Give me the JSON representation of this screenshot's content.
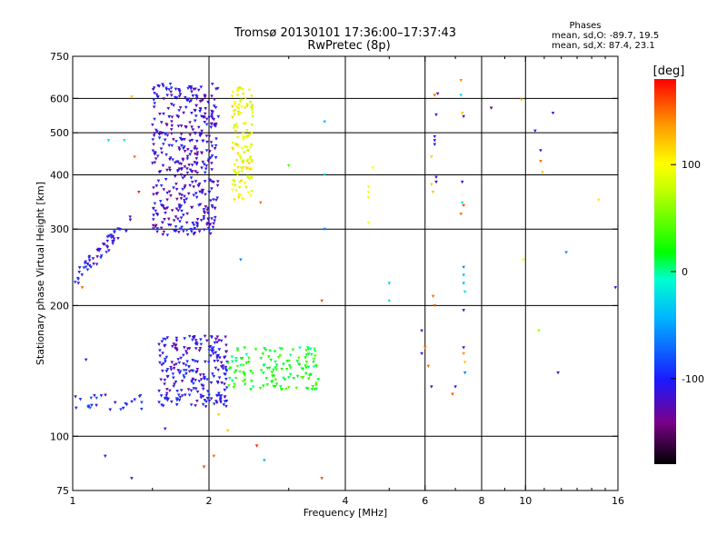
{
  "chart_data": {
    "type": "scatter",
    "title": "Tromsø 20130101 17:36:00–17:37:43",
    "subtitle": "RwPretec (8p)",
    "phases_heading": "Phases",
    "phases_line1": "mean, sd,O: -89.7, 19.5",
    "phases_line2": "mean, sd,X:  87.4, 23.1",
    "xlabel": "Frequency [MHz]",
    "ylabel": "Stationary phase Virtual Height [km]",
    "xscale": "log",
    "yscale": "log",
    "xlim": [
      1,
      16
    ],
    "ylim": [
      75,
      750
    ],
    "xticks": [
      {
        "v": 1,
        "label": "1"
      },
      {
        "v": 2,
        "label": "2"
      },
      {
        "v": 4,
        "label": "4"
      },
      {
        "v": 6,
        "label": "6"
      },
      {
        "v": 8,
        "label": "8"
      },
      {
        "v": 10,
        "label": "10"
      },
      {
        "v": 16,
        "label": "16"
      }
    ],
    "yticks": [
      {
        "v": 75,
        "label": "75"
      },
      {
        "v": 100,
        "label": "100"
      },
      {
        "v": 200,
        "label": "200"
      },
      {
        "v": 300,
        "label": "300"
      },
      {
        "v": 400,
        "label": "400"
      },
      {
        "v": 500,
        "label": "500"
      },
      {
        "v": 600,
        "label": "600"
      },
      {
        "v": 750,
        "label": "750"
      }
    ],
    "grid_x": [
      2,
      4,
      6,
      8,
      10
    ],
    "grid_y": [
      100,
      200,
      300,
      400,
      500,
      600
    ],
    "colorbar": {
      "title": "[deg]",
      "range": [
        -180,
        180
      ],
      "ticks": [
        {
          "v": 100,
          "label": "100"
        },
        {
          "v": 0,
          "label": "0"
        },
        {
          "v": -100,
          "label": "-100"
        }
      ]
    },
    "clusters": [
      {
        "name": "F-layer O trace (low)",
        "x_range": [
          1.0,
          1.35
        ],
        "y_range": [
          225,
          320
        ],
        "phase_deg": -110,
        "count": 55,
        "trend": "rising"
      },
      {
        "name": "F-layer O trace",
        "x_range": [
          1.5,
          2.1
        ],
        "y_range": [
          290,
          650
        ],
        "phase_deg": -115,
        "count": 420
      },
      {
        "name": "F-layer X trace",
        "x_range": [
          2.25,
          2.5
        ],
        "y_range": [
          350,
          640
        ],
        "phase_deg": 95,
        "count": 130
      },
      {
        "name": "E-layer O trace",
        "x_range": [
          1.55,
          2.2
        ],
        "y_range": [
          117,
          170
        ],
        "phase_deg": -110,
        "count": 230
      },
      {
        "name": "E-layer mixed trace",
        "x_range": [
          2.2,
          3.5
        ],
        "y_range": [
          128,
          160
        ],
        "phase_deg": 20,
        "count": 140
      },
      {
        "name": "E-layer low band",
        "x_range": [
          1.0,
          1.45
        ],
        "y_range": [
          115,
          125
        ],
        "phase_deg": -100,
        "count": 25
      }
    ],
    "points": [
      {
        "x": 1.35,
        "y": 605,
        "phase": 120
      },
      {
        "x": 1.3,
        "y": 480,
        "phase": 0
      },
      {
        "x": 1.2,
        "y": 480,
        "phase": -20
      },
      {
        "x": 1.37,
        "y": 440,
        "phase": 150
      },
      {
        "x": 1.4,
        "y": 365,
        "phase": 170
      },
      {
        "x": 1.05,
        "y": 220,
        "phase": 150
      },
      {
        "x": 1.07,
        "y": 150,
        "phase": -100
      },
      {
        "x": 1.18,
        "y": 90,
        "phase": -110
      },
      {
        "x": 1.35,
        "y": 80,
        "phase": -120
      },
      {
        "x": 1.6,
        "y": 104,
        "phase": -100
      },
      {
        "x": 1.95,
        "y": 85,
        "phase": 160
      },
      {
        "x": 2.05,
        "y": 90,
        "phase": 150
      },
      {
        "x": 2.1,
        "y": 112,
        "phase": 120
      },
      {
        "x": 2.2,
        "y": 103,
        "phase": 120
      },
      {
        "x": 2.35,
        "y": 255,
        "phase": -60
      },
      {
        "x": 2.6,
        "y": 345,
        "phase": 150
      },
      {
        "x": 2.65,
        "y": 88,
        "phase": -40
      },
      {
        "x": 2.55,
        "y": 95,
        "phase": 170
      },
      {
        "x": 3.0,
        "y": 420,
        "phase": 40
      },
      {
        "x": 3.6,
        "y": 530,
        "phase": -40
      },
      {
        "x": 3.6,
        "y": 400,
        "phase": -20
      },
      {
        "x": 3.6,
        "y": 300,
        "phase": -60
      },
      {
        "x": 3.55,
        "y": 205,
        "phase": 160
      },
      {
        "x": 3.55,
        "y": 80,
        "phase": 160
      },
      {
        "x": 4.5,
        "y": 375,
        "phase": 100
      },
      {
        "x": 4.5,
        "y": 365,
        "phase": 100
      },
      {
        "x": 4.5,
        "y": 355,
        "phase": 90
      },
      {
        "x": 4.5,
        "y": 310,
        "phase": 100
      },
      {
        "x": 4.6,
        "y": 415,
        "phase": 100
      },
      {
        "x": 5.0,
        "y": 225,
        "phase": -30
      },
      {
        "x": 5.0,
        "y": 205,
        "phase": -20
      },
      {
        "x": 5.9,
        "y": 175,
        "phase": -110
      },
      {
        "x": 5.9,
        "y": 155,
        "phase": -110
      },
      {
        "x": 6.0,
        "y": 160,
        "phase": 150
      },
      {
        "x": 6.1,
        "y": 145,
        "phase": 150
      },
      {
        "x": 6.2,
        "y": 130,
        "phase": -120
      },
      {
        "x": 6.2,
        "y": 440,
        "phase": 120
      },
      {
        "x": 6.2,
        "y": 380,
        "phase": 120
      },
      {
        "x": 6.25,
        "y": 365,
        "phase": 120
      },
      {
        "x": 6.25,
        "y": 210,
        "phase": 150
      },
      {
        "x": 6.3,
        "y": 610,
        "phase": 150
      },
      {
        "x": 6.3,
        "y": 490,
        "phase": -110
      },
      {
        "x": 6.3,
        "y": 480,
        "phase": -110
      },
      {
        "x": 6.3,
        "y": 470,
        "phase": -110
      },
      {
        "x": 6.35,
        "y": 395,
        "phase": -120
      },
      {
        "x": 6.35,
        "y": 385,
        "phase": -110
      },
      {
        "x": 6.3,
        "y": 200,
        "phase": 150
      },
      {
        "x": 6.35,
        "y": 550,
        "phase": -120
      },
      {
        "x": 6.4,
        "y": 615,
        "phase": -120
      },
      {
        "x": 6.9,
        "y": 125,
        "phase": 160
      },
      {
        "x": 7.0,
        "y": 130,
        "phase": -110
      },
      {
        "x": 7.2,
        "y": 660,
        "phase": 140
      },
      {
        "x": 7.2,
        "y": 610,
        "phase": -20
      },
      {
        "x": 7.25,
        "y": 555,
        "phase": 120
      },
      {
        "x": 7.3,
        "y": 545,
        "phase": -110
      },
      {
        "x": 7.25,
        "y": 385,
        "phase": -110
      },
      {
        "x": 7.25,
        "y": 345,
        "phase": -20
      },
      {
        "x": 7.3,
        "y": 340,
        "phase": 160
      },
      {
        "x": 7.2,
        "y": 325,
        "phase": 150
      },
      {
        "x": 7.3,
        "y": 245,
        "phase": -60
      },
      {
        "x": 7.3,
        "y": 235,
        "phase": -40
      },
      {
        "x": 7.3,
        "y": 225,
        "phase": -40
      },
      {
        "x": 7.35,
        "y": 215,
        "phase": -20
      },
      {
        "x": 7.3,
        "y": 195,
        "phase": -110
      },
      {
        "x": 7.3,
        "y": 160,
        "phase": -110
      },
      {
        "x": 7.3,
        "y": 155,
        "phase": 140
      },
      {
        "x": 7.35,
        "y": 148,
        "phase": 120
      },
      {
        "x": 7.35,
        "y": 140,
        "phase": -60
      },
      {
        "x": 8.4,
        "y": 570,
        "phase": -150
      },
      {
        "x": 9.8,
        "y": 595,
        "phase": 120
      },
      {
        "x": 9.9,
        "y": 255,
        "phase": 100
      },
      {
        "x": 10.5,
        "y": 505,
        "phase": -110
      },
      {
        "x": 10.8,
        "y": 455,
        "phase": -110
      },
      {
        "x": 10.8,
        "y": 430,
        "phase": 150
      },
      {
        "x": 10.9,
        "y": 405,
        "phase": 120
      },
      {
        "x": 10.7,
        "y": 175,
        "phase": 60
      },
      {
        "x": 11.5,
        "y": 555,
        "phase": -120
      },
      {
        "x": 11.8,
        "y": 140,
        "phase": -120
      },
      {
        "x": 12.3,
        "y": 265,
        "phase": -60
      },
      {
        "x": 14.5,
        "y": 350,
        "phase": 110
      },
      {
        "x": 15.8,
        "y": 220,
        "phase": -110
      }
    ]
  }
}
